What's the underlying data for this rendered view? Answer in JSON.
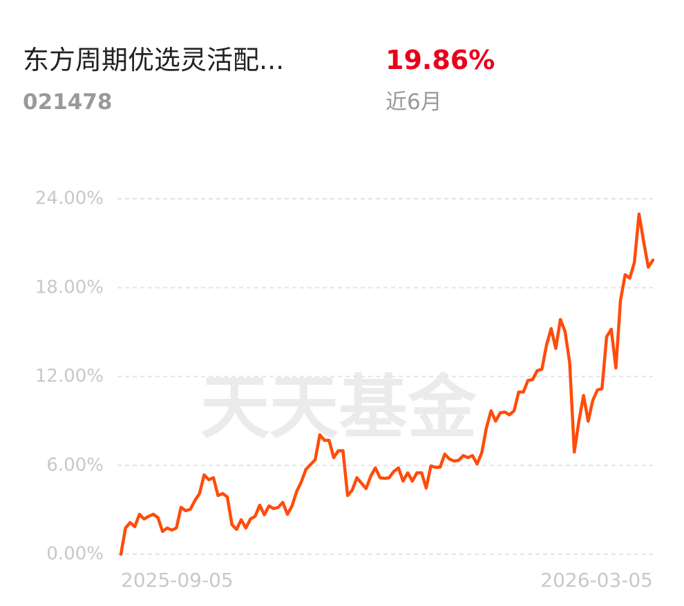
{
  "header": {
    "title": "东方周期优选灵活配...",
    "code": "021478",
    "return": "19.86%",
    "period": "近6月"
  },
  "watermark": "天天基金",
  "chart_data": {
    "type": "line",
    "color": "#ff4c0a",
    "grid": true,
    "ylim": [
      0,
      24
    ],
    "yticks": [
      {
        "value": 0,
        "label": "0.00%"
      },
      {
        "value": 6,
        "label": "6.00%"
      },
      {
        "value": 12,
        "label": "12.00%"
      },
      {
        "value": 18,
        "label": "18.00%"
      },
      {
        "value": 24,
        "label": "24.00%"
      }
    ],
    "categories": [
      "2025-09-05",
      null,
      null,
      null,
      null,
      null,
      null,
      null,
      null,
      null,
      null,
      null,
      null,
      null,
      null,
      null,
      null,
      null,
      null,
      null,
      null,
      null,
      null,
      null,
      null,
      null,
      null,
      null,
      null,
      null,
      null,
      null,
      null,
      null,
      null,
      null,
      null,
      null,
      null,
      null,
      null,
      null,
      null,
      null,
      null,
      null,
      null,
      null,
      null,
      null,
      null,
      null,
      null,
      null,
      null,
      null,
      null,
      null,
      null,
      null,
      null,
      null,
      null,
      null,
      null,
      null,
      null,
      null,
      null,
      null,
      null,
      null,
      null,
      null,
      null,
      null,
      null,
      null,
      null,
      null,
      null,
      null,
      null,
      null,
      null,
      null,
      null,
      null,
      null,
      null,
      null,
      null,
      null,
      null,
      null,
      null,
      null,
      null,
      null,
      null,
      null,
      null,
      null,
      null,
      null,
      null,
      null,
      null,
      null,
      null,
      null,
      null,
      null,
      null,
      null,
      "2026-03-05"
    ],
    "values": [
      0,
      1.77,
      2.14,
      1.86,
      2.7,
      2.38,
      2.56,
      2.7,
      2.47,
      1.54,
      1.77,
      1.63,
      1.77,
      3.17,
      2.94,
      3.03,
      3.63,
      4.1,
      5.36,
      5.03,
      5.17,
      3.96,
      4.1,
      3.87,
      2.0,
      1.68,
      2.33,
      1.77,
      2.38,
      2.56,
      3.31,
      2.66,
      3.26,
      3.08,
      3.17,
      3.5,
      2.7,
      3.26,
      4.24,
      4.89,
      5.73,
      6.06,
      6.38,
      8.06,
      7.69,
      7.69,
      6.52,
      6.99,
      6.99,
      3.96,
      4.33,
      5.17,
      4.8,
      4.43,
      5.27,
      5.83,
      5.17,
      5.12,
      5.17,
      5.59,
      5.83,
      4.94,
      5.5,
      4.94,
      5.5,
      5.5,
      4.47,
      5.96,
      5.87,
      5.87,
      6.76,
      6.43,
      6.29,
      6.34,
      6.66,
      6.52,
      6.66,
      6.1,
      6.85,
      8.53,
      9.69,
      8.99,
      9.55,
      9.6,
      9.41,
      9.69,
      10.95,
      10.95,
      11.74,
      11.79,
      12.4,
      12.49,
      14.12,
      15.24,
      13.89,
      15.85,
      15.05,
      12.95,
      6.9,
      8.99,
      10.72,
      8.99,
      10.39,
      11.09,
      11.18,
      14.68,
      15.19,
      12.58,
      17.15,
      18.87,
      18.64,
      19.71,
      22.97,
      21.11,
      19.38,
      19.86
    ]
  }
}
